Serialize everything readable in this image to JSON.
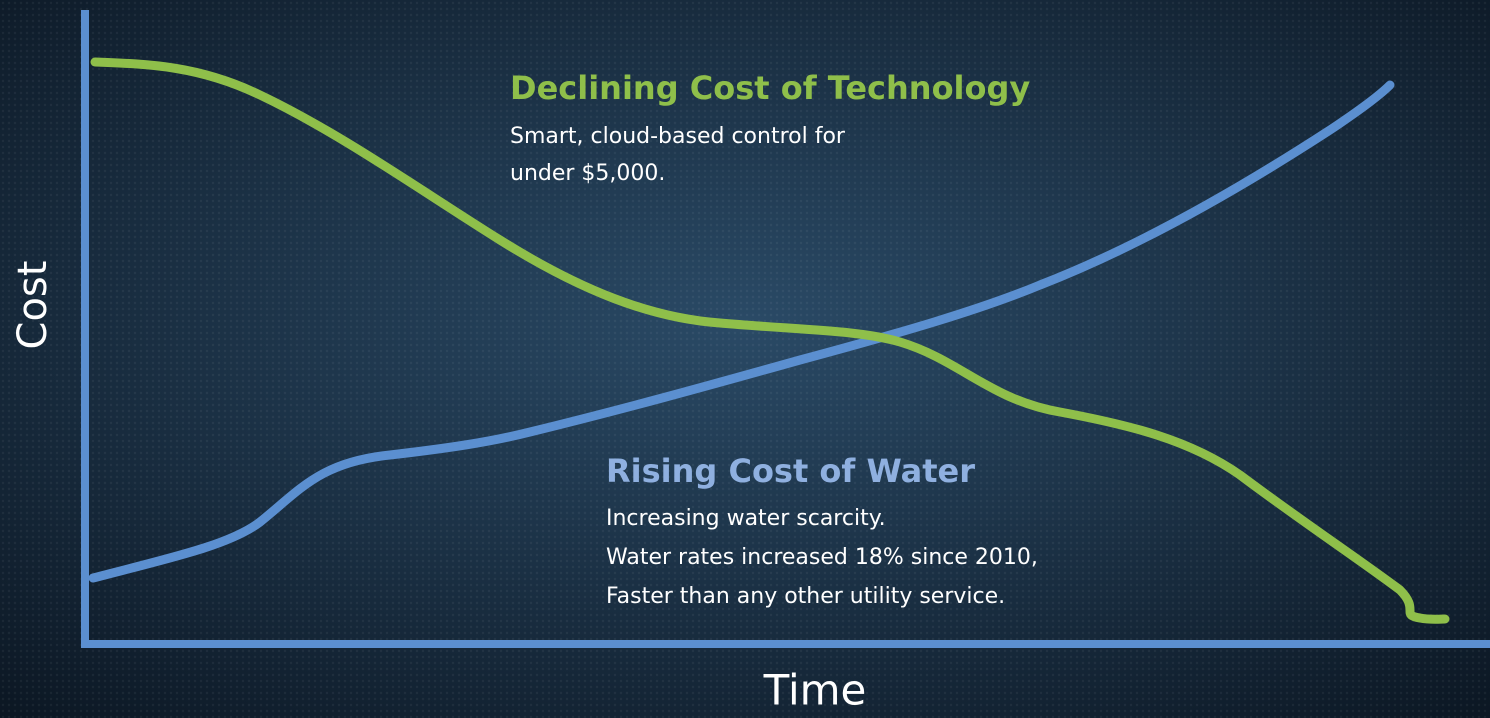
{
  "axes": {
    "y_label": "Cost",
    "x_label": "Time"
  },
  "annotations": [
    {
      "title": "Declining Cost of Technology",
      "lines": [
        "Smart, cloud-based control for",
        "under $5,000."
      ]
    },
    {
      "title": "Rising Cost of Water",
      "lines": [
        "Increasing water scarcity.",
        "Water rates increased 18% since 2010,",
        "Faster than any other utility service."
      ]
    }
  ]
}
